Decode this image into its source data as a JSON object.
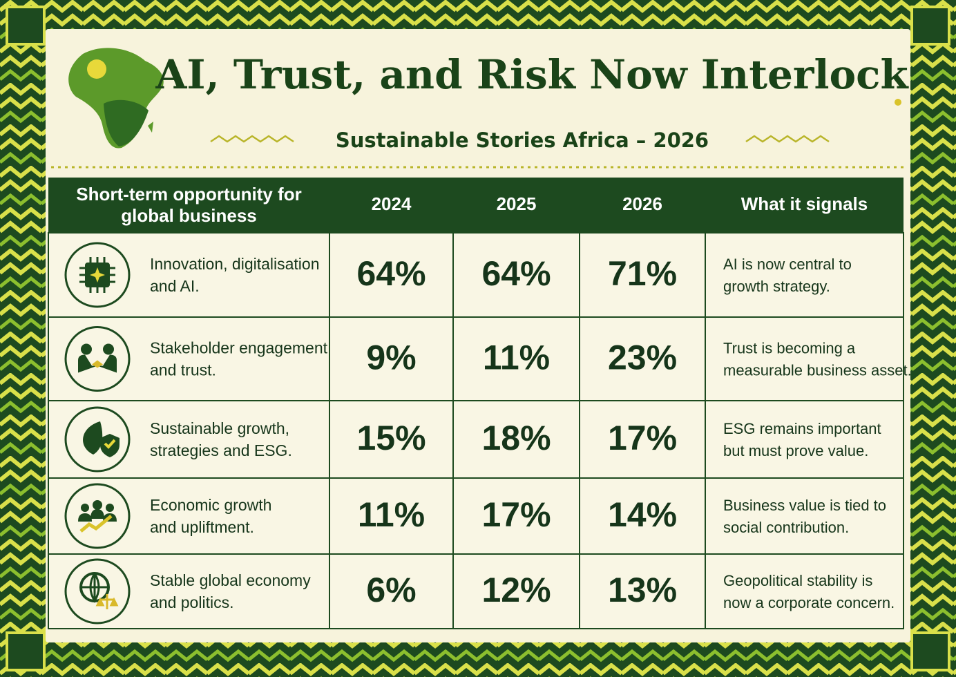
{
  "header": {
    "title": "AI, Trust, and Risk Now Interlock",
    "subtitle": "Sustainable Stories Africa – 2026"
  },
  "table": {
    "columns": [
      "Short-term opportunity for global business",
      "2024",
      "2025",
      "2026",
      "What it signals"
    ],
    "rows": [
      {
        "label": [
          "Innovation, digitalisation",
          "and AI."
        ],
        "values": [
          "64%",
          "64%",
          "71%"
        ],
        "signal": [
          "AI is now central to",
          "growth strategy."
        ]
      },
      {
        "label": [
          "Stakeholder engagement",
          "and trust."
        ],
        "values": [
          "9%",
          "11%",
          "23%"
        ],
        "signal": [
          "Trust is becoming a",
          "measurable business asset."
        ]
      },
      {
        "label": [
          "Sustainable growth,",
          "strategies and ESG."
        ],
        "values": [
          "15%",
          "18%",
          "17%"
        ],
        "signal": [
          "ESG remains important",
          "but must prove value."
        ]
      },
      {
        "label": [
          "Economic growth",
          "and upliftment."
        ],
        "values": [
          "11%",
          "17%",
          "14%"
        ],
        "signal": [
          "Business value is tied to",
          "social contribution."
        ]
      },
      {
        "label": [
          "Stable global economy",
          "and politics."
        ],
        "values": [
          "6%",
          "12%",
          "13%"
        ],
        "signal": [
          "Geopolitical stability is",
          "now a corporate concern."
        ]
      }
    ]
  }
}
